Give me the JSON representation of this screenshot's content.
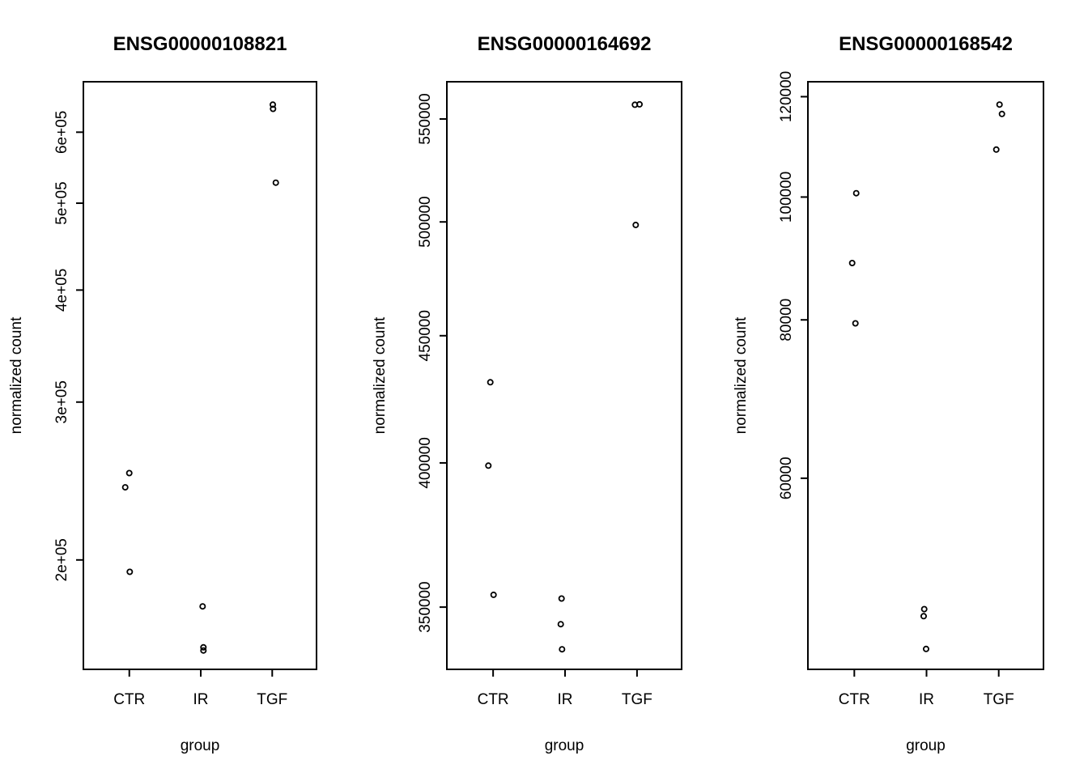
{
  "figure": {
    "background_color": "#ffffff",
    "foreground_color": "#000000"
  },
  "chart_data": [
    {
      "type": "scatter",
      "title": "ENSG00000108821",
      "xlabel": "group",
      "ylabel": "normalized count",
      "y_scale": "log",
      "ylim": [
        151000,
        683000
      ],
      "grid": false,
      "categories": [
        "CTR",
        "IR",
        "TGF"
      ],
      "yticks": [
        {
          "value": 200000,
          "label": "2e+05"
        },
        {
          "value": 300000,
          "label": "3e+05"
        },
        {
          "value": 400000,
          "label": "4e+05"
        },
        {
          "value": 500000,
          "label": "5e+05"
        },
        {
          "value": 600000,
          "label": "6e+05"
        }
      ],
      "series": [
        {
          "name": "CTR",
          "values": [
            250000,
            241000,
            194000
          ]
        },
        {
          "name": "IR",
          "values": [
            177500,
            159800,
            158500
          ]
        },
        {
          "name": "TGF",
          "values": [
            644000,
            637000,
            527000
          ]
        }
      ],
      "points": [
        {
          "group": "CTR",
          "x": 1.0,
          "y": 250000
        },
        {
          "group": "CTR",
          "x": 0.943,
          "y": 241000
        },
        {
          "group": "CTR",
          "x": 1.006,
          "y": 194000
        },
        {
          "group": "IR",
          "x": 2.026,
          "y": 177500
        },
        {
          "group": "IR",
          "x": 2.037,
          "y": 159800
        },
        {
          "group": "IR",
          "x": 2.037,
          "y": 158500
        },
        {
          "group": "TGF",
          "x": 3.008,
          "y": 644000
        },
        {
          "group": "TGF",
          "x": 3.012,
          "y": 637000
        },
        {
          "group": "TGF",
          "x": 3.05,
          "y": 527000
        }
      ]
    },
    {
      "type": "scatter",
      "title": "ENSG00000164692",
      "xlabel": "group",
      "ylabel": "normalized count",
      "y_scale": "log",
      "ylim": [
        330400,
        569300
      ],
      "grid": false,
      "categories": [
        "CTR",
        "IR",
        "TGF"
      ],
      "yticks": [
        {
          "value": 350000,
          "label": "350000"
        },
        {
          "value": 400000,
          "label": "400000"
        },
        {
          "value": 450000,
          "label": "450000"
        },
        {
          "value": 500000,
          "label": "500000"
        },
        {
          "value": 550000,
          "label": "550000"
        }
      ],
      "series": [
        {
          "name": "CTR",
          "values": [
            431000,
            399000,
            354000
          ]
        },
        {
          "name": "IR",
          "values": [
            352800,
            344500,
            336600
          ]
        },
        {
          "name": "TGF",
          "values": [
            557300,
            557500,
            498600
          ]
        }
      ],
      "points": [
        {
          "group": "CTR",
          "x": 0.961,
          "y": 431000
        },
        {
          "group": "CTR",
          "x": 0.934,
          "y": 399000
        },
        {
          "group": "CTR",
          "x": 1.006,
          "y": 354000
        },
        {
          "group": "IR",
          "x": 1.952,
          "y": 352800
        },
        {
          "group": "IR",
          "x": 1.94,
          "y": 344500
        },
        {
          "group": "IR",
          "x": 1.958,
          "y": 336600
        },
        {
          "group": "TGF",
          "x": 2.971,
          "y": 557300
        },
        {
          "group": "TGF",
          "x": 3.035,
          "y": 557500
        },
        {
          "group": "TGF",
          "x": 2.982,
          "y": 498600
        }
      ]
    },
    {
      "type": "scatter",
      "title": "ENSG00000168542",
      "xlabel": "group",
      "ylabel": "normalized count",
      "y_scale": "log",
      "ylim": [
        42400,
        123300
      ],
      "grid": false,
      "categories": [
        "CTR",
        "IR",
        "TGF"
      ],
      "yticks": [
        {
          "value": 60000,
          "label": "60000"
        },
        {
          "value": 80000,
          "label": "80000"
        },
        {
          "value": 100000,
          "label": "100000"
        },
        {
          "value": 120000,
          "label": "120000"
        }
      ],
      "series": [
        {
          "name": "CTR",
          "values": [
            100700,
            88700,
            79500
          ]
        },
        {
          "name": "IR",
          "values": [
            47300,
            46700,
            44000
          ]
        },
        {
          "name": "TGF",
          "values": [
            118300,
            116300,
            109000
          ]
        }
      ],
      "points": [
        {
          "group": "CTR",
          "x": 1.027,
          "y": 100700
        },
        {
          "group": "CTR",
          "x": 0.971,
          "y": 88700
        },
        {
          "group": "CTR",
          "x": 1.015,
          "y": 79500
        },
        {
          "group": "IR",
          "x": 1.968,
          "y": 47300
        },
        {
          "group": "IR",
          "x": 1.961,
          "y": 46700
        },
        {
          "group": "IR",
          "x": 1.994,
          "y": 44000
        },
        {
          "group": "TGF",
          "x": 3.011,
          "y": 118300
        },
        {
          "group": "TGF",
          "x": 3.045,
          "y": 116300
        },
        {
          "group": "TGF",
          "x": 2.966,
          "y": 109000
        }
      ]
    }
  ]
}
